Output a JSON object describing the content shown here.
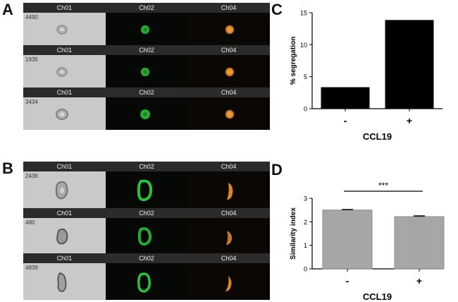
{
  "panels": {
    "A": {
      "letter": "A",
      "rows": [
        {
          "channels": [
            "Ch01",
            "Ch02",
            "Ch04"
          ],
          "id": "4490"
        },
        {
          "channels": [
            "Ch01",
            "Ch02",
            "Ch04"
          ],
          "id": "1935"
        },
        {
          "channels": [
            "Ch01",
            "Ch02",
            "Ch04"
          ],
          "id": "3434"
        }
      ]
    },
    "B": {
      "letter": "B",
      "rows": [
        {
          "channels": [
            "Ch01",
            "Ch02",
            "Ch04"
          ],
          "id": "2436"
        },
        {
          "channels": [
            "Ch01",
            "Ch02",
            "Ch04"
          ],
          "id": "480"
        },
        {
          "channels": [
            "Ch01",
            "Ch02",
            "Ch04"
          ],
          "id": "4839"
        }
      ]
    },
    "C": {
      "letter": "C"
    },
    "D": {
      "letter": "D"
    }
  },
  "colors": {
    "panel_c_bar": "#000000",
    "panel_d_bar": "#a6a6a6",
    "green_cell": "#2fbf3a",
    "orange_cell": "#d9862a"
  },
  "chart_data": [
    {
      "type": "bar",
      "panel": "C",
      "categories": [
        "-",
        "+"
      ],
      "values": [
        3.3,
        13.8
      ],
      "xlabel": "CCL19",
      "ylabel": "% segregation",
      "ylim": [
        0,
        15
      ],
      "yticks": [
        "0",
        "5",
        "10",
        "15"
      ]
    },
    {
      "type": "bar",
      "panel": "D",
      "categories": [
        "-",
        "+"
      ],
      "values": [
        2.5,
        2.22
      ],
      "errors": [
        0.02,
        0.03
      ],
      "xlabel": "CCL19",
      "ylabel": "Similarity index",
      "ylim": [
        0,
        3
      ],
      "yticks": [
        "0",
        "1",
        "2",
        "3"
      ],
      "annotation": "***"
    }
  ]
}
